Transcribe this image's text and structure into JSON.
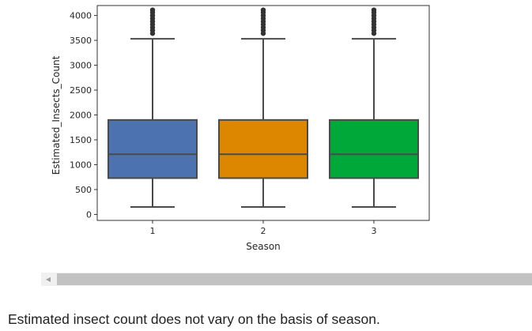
{
  "chart_data": {
    "type": "box",
    "xlabel": "Season",
    "ylabel": "Estimated_Insects_Count",
    "ylim": [
      -120,
      4200
    ],
    "yticks": [
      0,
      500,
      1000,
      1500,
      2000,
      2500,
      3000,
      3500,
      4000
    ],
    "categories": [
      "1",
      "2",
      "3"
    ],
    "grid": false,
    "series": [
      {
        "category": "1",
        "color": "#4c72b0",
        "whisker_low": 150,
        "q1": 730,
        "median": 1210,
        "q3": 1900,
        "whisker_high": 3530,
        "outliers": [
          3640,
          3700,
          3760,
          3820,
          3880,
          3940,
          4000,
          4060,
          4110
        ]
      },
      {
        "category": "2",
        "color": "#dd8700",
        "whisker_low": 150,
        "q1": 730,
        "median": 1210,
        "q3": 1900,
        "whisker_high": 3530,
        "outliers": [
          3640,
          3700,
          3760,
          3820,
          3880,
          3940,
          4000,
          4060,
          4110
        ]
      },
      {
        "category": "3",
        "color": "#00a83a",
        "whisker_low": 150,
        "q1": 730,
        "median": 1210,
        "q3": 1900,
        "whisker_high": 3530,
        "outliers": [
          3640,
          3700,
          3760,
          3820,
          3880,
          3940,
          4000,
          4060,
          4110
        ]
      }
    ]
  },
  "caption": "Estimated insect count does not vary on the basis of season.",
  "scrollbar": {
    "left_arrow_icon": "triangle-left-icon"
  }
}
